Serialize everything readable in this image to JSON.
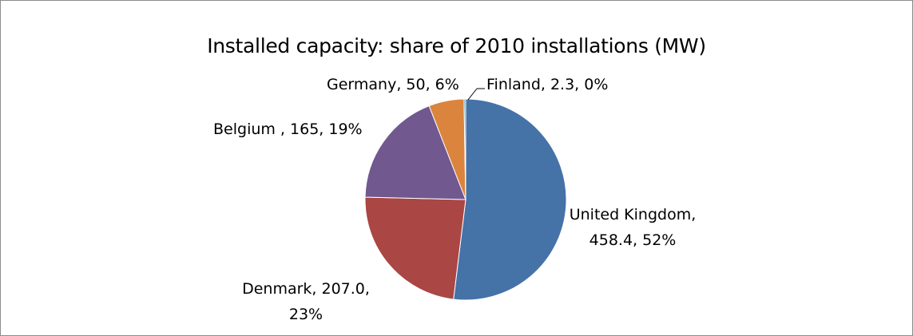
{
  "chart_data": {
    "type": "pie",
    "title": "Installed capacity: share of 2010 installations (MW)",
    "slices": [
      {
        "label": "United Kingdom",
        "value": 458.4,
        "percent": 52,
        "color": "#4572a7",
        "label_lines": [
          "United Kingdom,",
          "458.4, 52%"
        ]
      },
      {
        "label": "Denmark",
        "value": 207.0,
        "percent": 23,
        "color": "#aa4643",
        "label_lines": [
          "Denmark, 207.0,",
          "23%"
        ]
      },
      {
        "label": "Belgium ",
        "value": 165,
        "percent": 19,
        "color": "#71588f",
        "label_lines": [
          "Belgium , 165, 19%"
        ]
      },
      {
        "label": "Germany",
        "value": 50,
        "percent": 6,
        "color": "#db843d",
        "label_lines": [
          "Germany, 50, 6%"
        ]
      },
      {
        "label": "Finland",
        "value": 2.3,
        "percent": 0,
        "color": "#4198af",
        "label_lines": [
          "Finland, 2.3, 0%"
        ]
      }
    ]
  }
}
